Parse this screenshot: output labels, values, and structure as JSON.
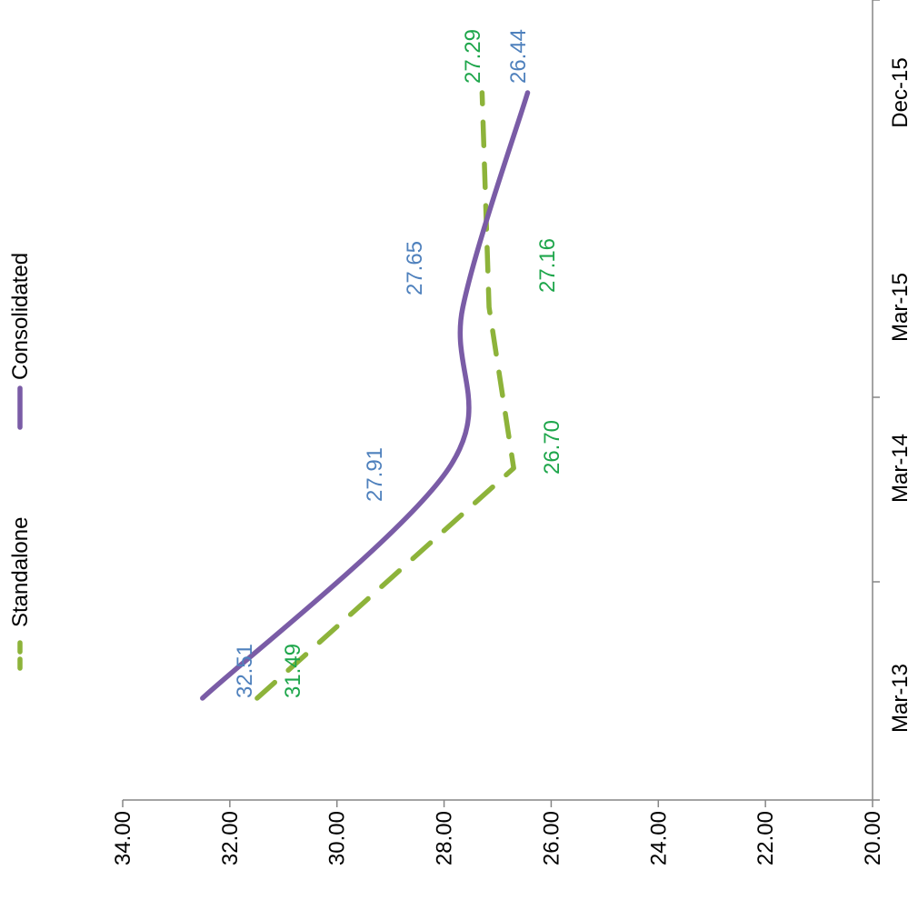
{
  "chart_data": {
    "type": "line",
    "orientation": "rotated-90-clockwise",
    "categories": [
      "Mar-13",
      "Mar-14",
      "Mar-15",
      "Dec-15"
    ],
    "series": [
      {
        "name": "Standalone",
        "values": [
          31.49,
          26.7,
          27.16,
          27.29
        ],
        "value_labels": [
          "31.49",
          "26.70",
          "27.16",
          "27.29"
        ],
        "color": "#8DB33A",
        "label_color": "#1EA64B",
        "style": "dashed"
      },
      {
        "name": "Consolidated",
        "values": [
          32.51,
          27.91,
          27.65,
          26.44
        ],
        "value_labels": [
          "32.51",
          "27.91",
          "27.65",
          "26.44"
        ],
        "color": "#7A5CA6",
        "label_color": "#4F81BD",
        "style": "solid"
      }
    ],
    "value_axis": {
      "min": 20,
      "max": 34,
      "step": 2,
      "tick_labels": [
        "34.00",
        "32.00",
        "30.00",
        "28.00",
        "26.00",
        "24.00",
        "22.00",
        "20.00"
      ]
    },
    "legend_position": "top",
    "grid": false,
    "title": "",
    "xlabel": "",
    "ylabel": ""
  }
}
